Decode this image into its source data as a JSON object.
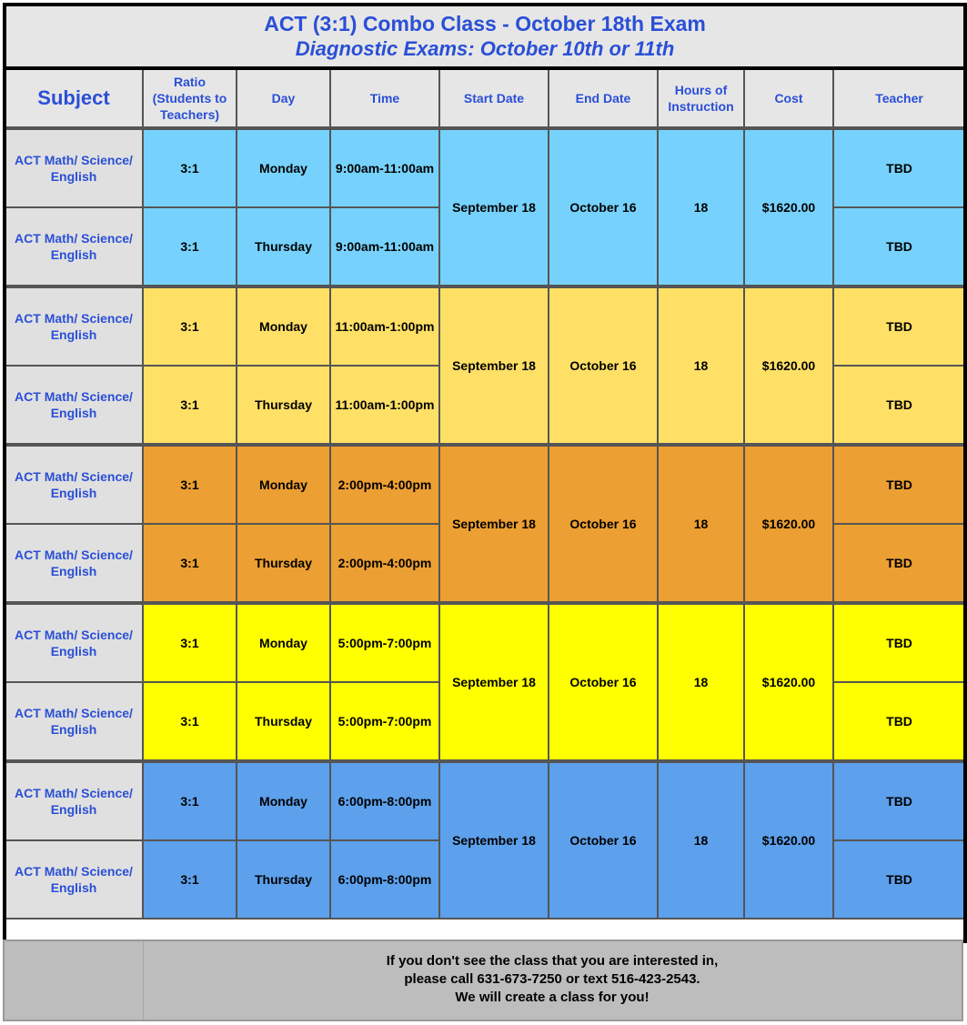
{
  "title": {
    "line1": "ACT (3:1) Combo Class - October 18th Exam",
    "line2": "Diagnostic Exams: October 10th or 11th"
  },
  "headers": {
    "subject": "Subject",
    "ratio": "Ratio (Students to Teachers)",
    "day": "Day",
    "time": "Time",
    "start": "Start Date",
    "end": "End Date",
    "hours": "Hours of Instruction",
    "cost": "Cost",
    "teacher": "Teacher"
  },
  "colors": {
    "group_0": "#76d2fc",
    "group_1": "#ffe066",
    "group_2": "#ec9f32",
    "group_3": "#ffff00",
    "group_4": "#5da0ec",
    "header_text": "#2a4fd6"
  },
  "groups": [
    {
      "start": "September 18",
      "end": "October 16",
      "hours": "18",
      "cost": "$1620.00",
      "rows": [
        {
          "subject": "ACT Math/ Science/ English",
          "ratio": "3:1",
          "day": "Monday",
          "time": "9:00am-11:00am",
          "teacher": "TBD"
        },
        {
          "subject": "ACT Math/ Science/ English",
          "ratio": "3:1",
          "day": "Thursday",
          "time": "9:00am-11:00am",
          "teacher": "TBD"
        }
      ]
    },
    {
      "start": "September 18",
      "end": "October 16",
      "hours": "18",
      "cost": "$1620.00",
      "rows": [
        {
          "subject": "ACT Math/ Science/ English",
          "ratio": "3:1",
          "day": "Monday",
          "time": "11:00am-1:00pm",
          "teacher": "TBD"
        },
        {
          "subject": "ACT Math/ Science/ English",
          "ratio": "3:1",
          "day": "Thursday",
          "time": "11:00am-1:00pm",
          "teacher": "TBD"
        }
      ]
    },
    {
      "start": "September 18",
      "end": "October 16",
      "hours": "18",
      "cost": "$1620.00",
      "rows": [
        {
          "subject": "ACT Math/ Science/ English",
          "ratio": "3:1",
          "day": "Monday",
          "time": "2:00pm-4:00pm",
          "teacher": "TBD"
        },
        {
          "subject": "ACT Math/ Science/ English",
          "ratio": "3:1",
          "day": "Thursday",
          "time": "2:00pm-4:00pm",
          "teacher": "TBD"
        }
      ]
    },
    {
      "start": "September 18",
      "end": "October 16",
      "hours": "18",
      "cost": "$1620.00",
      "rows": [
        {
          "subject": "ACT Math/ Science/ English",
          "ratio": "3:1",
          "day": "Monday",
          "time": "5:00pm-7:00pm",
          "teacher": "TBD"
        },
        {
          "subject": "ACT Math/ Science/ English",
          "ratio": "3:1",
          "day": "Thursday",
          "time": "5:00pm-7:00pm",
          "teacher": "TBD"
        }
      ]
    },
    {
      "start": "September 18",
      "end": "October 16",
      "hours": "18",
      "cost": "$1620.00",
      "rows": [
        {
          "subject": "ACT Math/ Science/ English",
          "ratio": "3:1",
          "day": "Monday",
          "time": "6:00pm-8:00pm",
          "teacher": "TBD"
        },
        {
          "subject": "ACT Math/ Science/ English",
          "ratio": "3:1",
          "day": "Thursday",
          "time": "6:00pm-8:00pm",
          "teacher": "TBD"
        }
      ]
    }
  ],
  "footer": {
    "line1": "If you don't see the class that you are interested in,",
    "line2": "please call 631-673-7250 or text 516-423-2543.",
    "line3": "We will create a class for you!"
  }
}
